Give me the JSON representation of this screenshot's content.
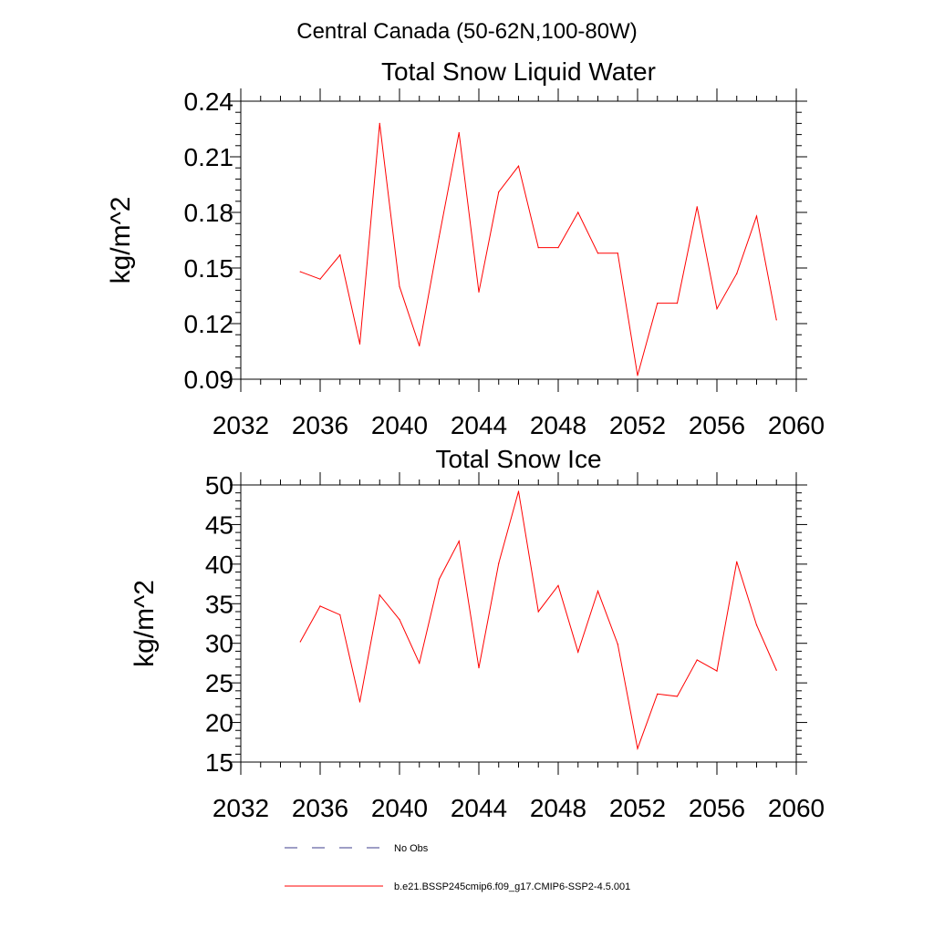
{
  "suptitle": "Central Canada (50-62N,100-80W)",
  "colors": {
    "series": "#ff0000",
    "obs": "#3c3c8c",
    "axis": "#000000"
  },
  "legend": [
    {
      "label": "No Obs",
      "style": "dashed",
      "color": "#3c3c8c"
    },
    {
      "label": "b.e21.BSSP245cmip6.f09_g17.CMIP6-SSP2-4.5.001",
      "style": "solid",
      "color": "#ff0000"
    }
  ],
  "chart_data": [
    {
      "type": "line",
      "title": "Total Snow Liquid Water",
      "xlabel": "",
      "ylabel": "kg/m^2",
      "xlim": [
        2032,
        2060
      ],
      "ylim": [
        0.09,
        0.24
      ],
      "xticks": [
        2032,
        2036,
        2040,
        2044,
        2048,
        2052,
        2056,
        2060
      ],
      "xtick_labels": [
        "2032",
        "2036",
        "2040",
        "2044",
        "2048",
        "2052",
        "2056",
        "2060"
      ],
      "yticks": [
        0.09,
        0.12,
        0.15,
        0.18,
        0.21,
        0.24
      ],
      "ytick_labels": [
        "0.09",
        "0.12",
        "0.15",
        "0.18",
        "0.21",
        "0.24"
      ],
      "grid": false,
      "x": [
        2035,
        2036,
        2037,
        2038,
        2039,
        2040,
        2041,
        2042,
        2043,
        2044,
        2045,
        2046,
        2047,
        2048,
        2049,
        2050,
        2051,
        2052,
        2053,
        2054,
        2055,
        2056,
        2057,
        2058,
        2059
      ],
      "series": [
        {
          "values": [
            0.148,
            0.144,
            0.157,
            0.109,
            0.228,
            0.14,
            0.108,
            0.167,
            0.223,
            0.137,
            0.191,
            0.205,
            0.161,
            0.161,
            0.18,
            0.158,
            0.158,
            0.092,
            0.131,
            0.131,
            0.183,
            0.128,
            0.147,
            0.178,
            0.122
          ]
        }
      ]
    },
    {
      "type": "line",
      "title": "Total Snow Ice",
      "xlabel": "",
      "ylabel": "kg/m^2",
      "xlim": [
        2032,
        2060
      ],
      "ylim": [
        15,
        50
      ],
      "xticks": [
        2032,
        2036,
        2040,
        2044,
        2048,
        2052,
        2056,
        2060
      ],
      "xtick_labels": [
        "2032",
        "2036",
        "2040",
        "2044",
        "2048",
        "2052",
        "2056",
        "2060"
      ],
      "yticks": [
        15,
        20,
        25,
        30,
        35,
        40,
        45,
        50
      ],
      "ytick_labels": [
        "15",
        "20",
        "25",
        "30",
        "35",
        "40",
        "45",
        "50"
      ],
      "grid": false,
      "x": [
        2035,
        2036,
        2037,
        2038,
        2039,
        2040,
        2041,
        2042,
        2043,
        2044,
        2045,
        2046,
        2047,
        2048,
        2049,
        2050,
        2051,
        2052,
        2053,
        2054,
        2055,
        2056,
        2057,
        2058,
        2059
      ],
      "series": [
        {
          "values": [
            30.2,
            34.7,
            33.6,
            22.6,
            36.1,
            33.0,
            27.5,
            38.1,
            42.9,
            26.9,
            40.1,
            49.2,
            34.0,
            37.3,
            28.9,
            36.6,
            29.9,
            16.7,
            23.6,
            23.3,
            27.9,
            26.5,
            40.3,
            32.3,
            26.6
          ]
        }
      ]
    }
  ]
}
